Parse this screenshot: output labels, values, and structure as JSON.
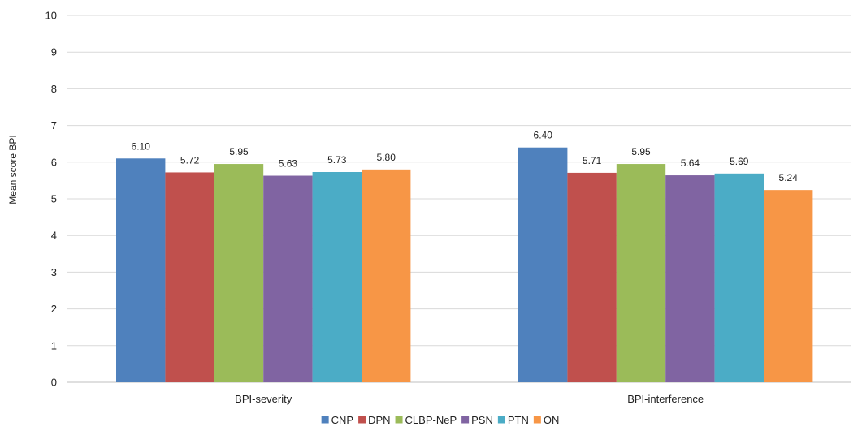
{
  "chart_data": {
    "type": "bar",
    "ylabel": "Mean score BPI",
    "xlabel": "",
    "ylim": [
      0,
      10
    ],
    "yticks": [
      0,
      1,
      2,
      3,
      4,
      5,
      6,
      7,
      8,
      9,
      10
    ],
    "grid": true,
    "legend_position": "bottom",
    "categories": [
      "BPI-severity",
      "BPI-interference"
    ],
    "series": [
      {
        "name": "CNP",
        "color": "#4f81bd",
        "values": [
          6.1,
          6.4
        ],
        "labels": [
          "6.10",
          "6.40"
        ]
      },
      {
        "name": "DPN",
        "color": "#c0504d",
        "values": [
          5.72,
          5.71
        ],
        "labels": [
          "5.72",
          "5.71"
        ]
      },
      {
        "name": "CLBP-NeP",
        "color": "#9bbb59",
        "values": [
          5.95,
          5.95
        ],
        "labels": [
          "5.95",
          "5.95"
        ]
      },
      {
        "name": "PSN",
        "color": "#8064a2",
        "values": [
          5.63,
          5.64
        ],
        "labels": [
          "5.63",
          "5.64"
        ]
      },
      {
        "name": "PTN",
        "color": "#4bacc6",
        "values": [
          5.73,
          5.69
        ],
        "labels": [
          "5.73",
          "5.69"
        ]
      },
      {
        "name": "ON",
        "color": "#f79646",
        "values": [
          5.8,
          5.24
        ],
        "labels": [
          "5.80",
          "5.24"
        ]
      }
    ]
  }
}
